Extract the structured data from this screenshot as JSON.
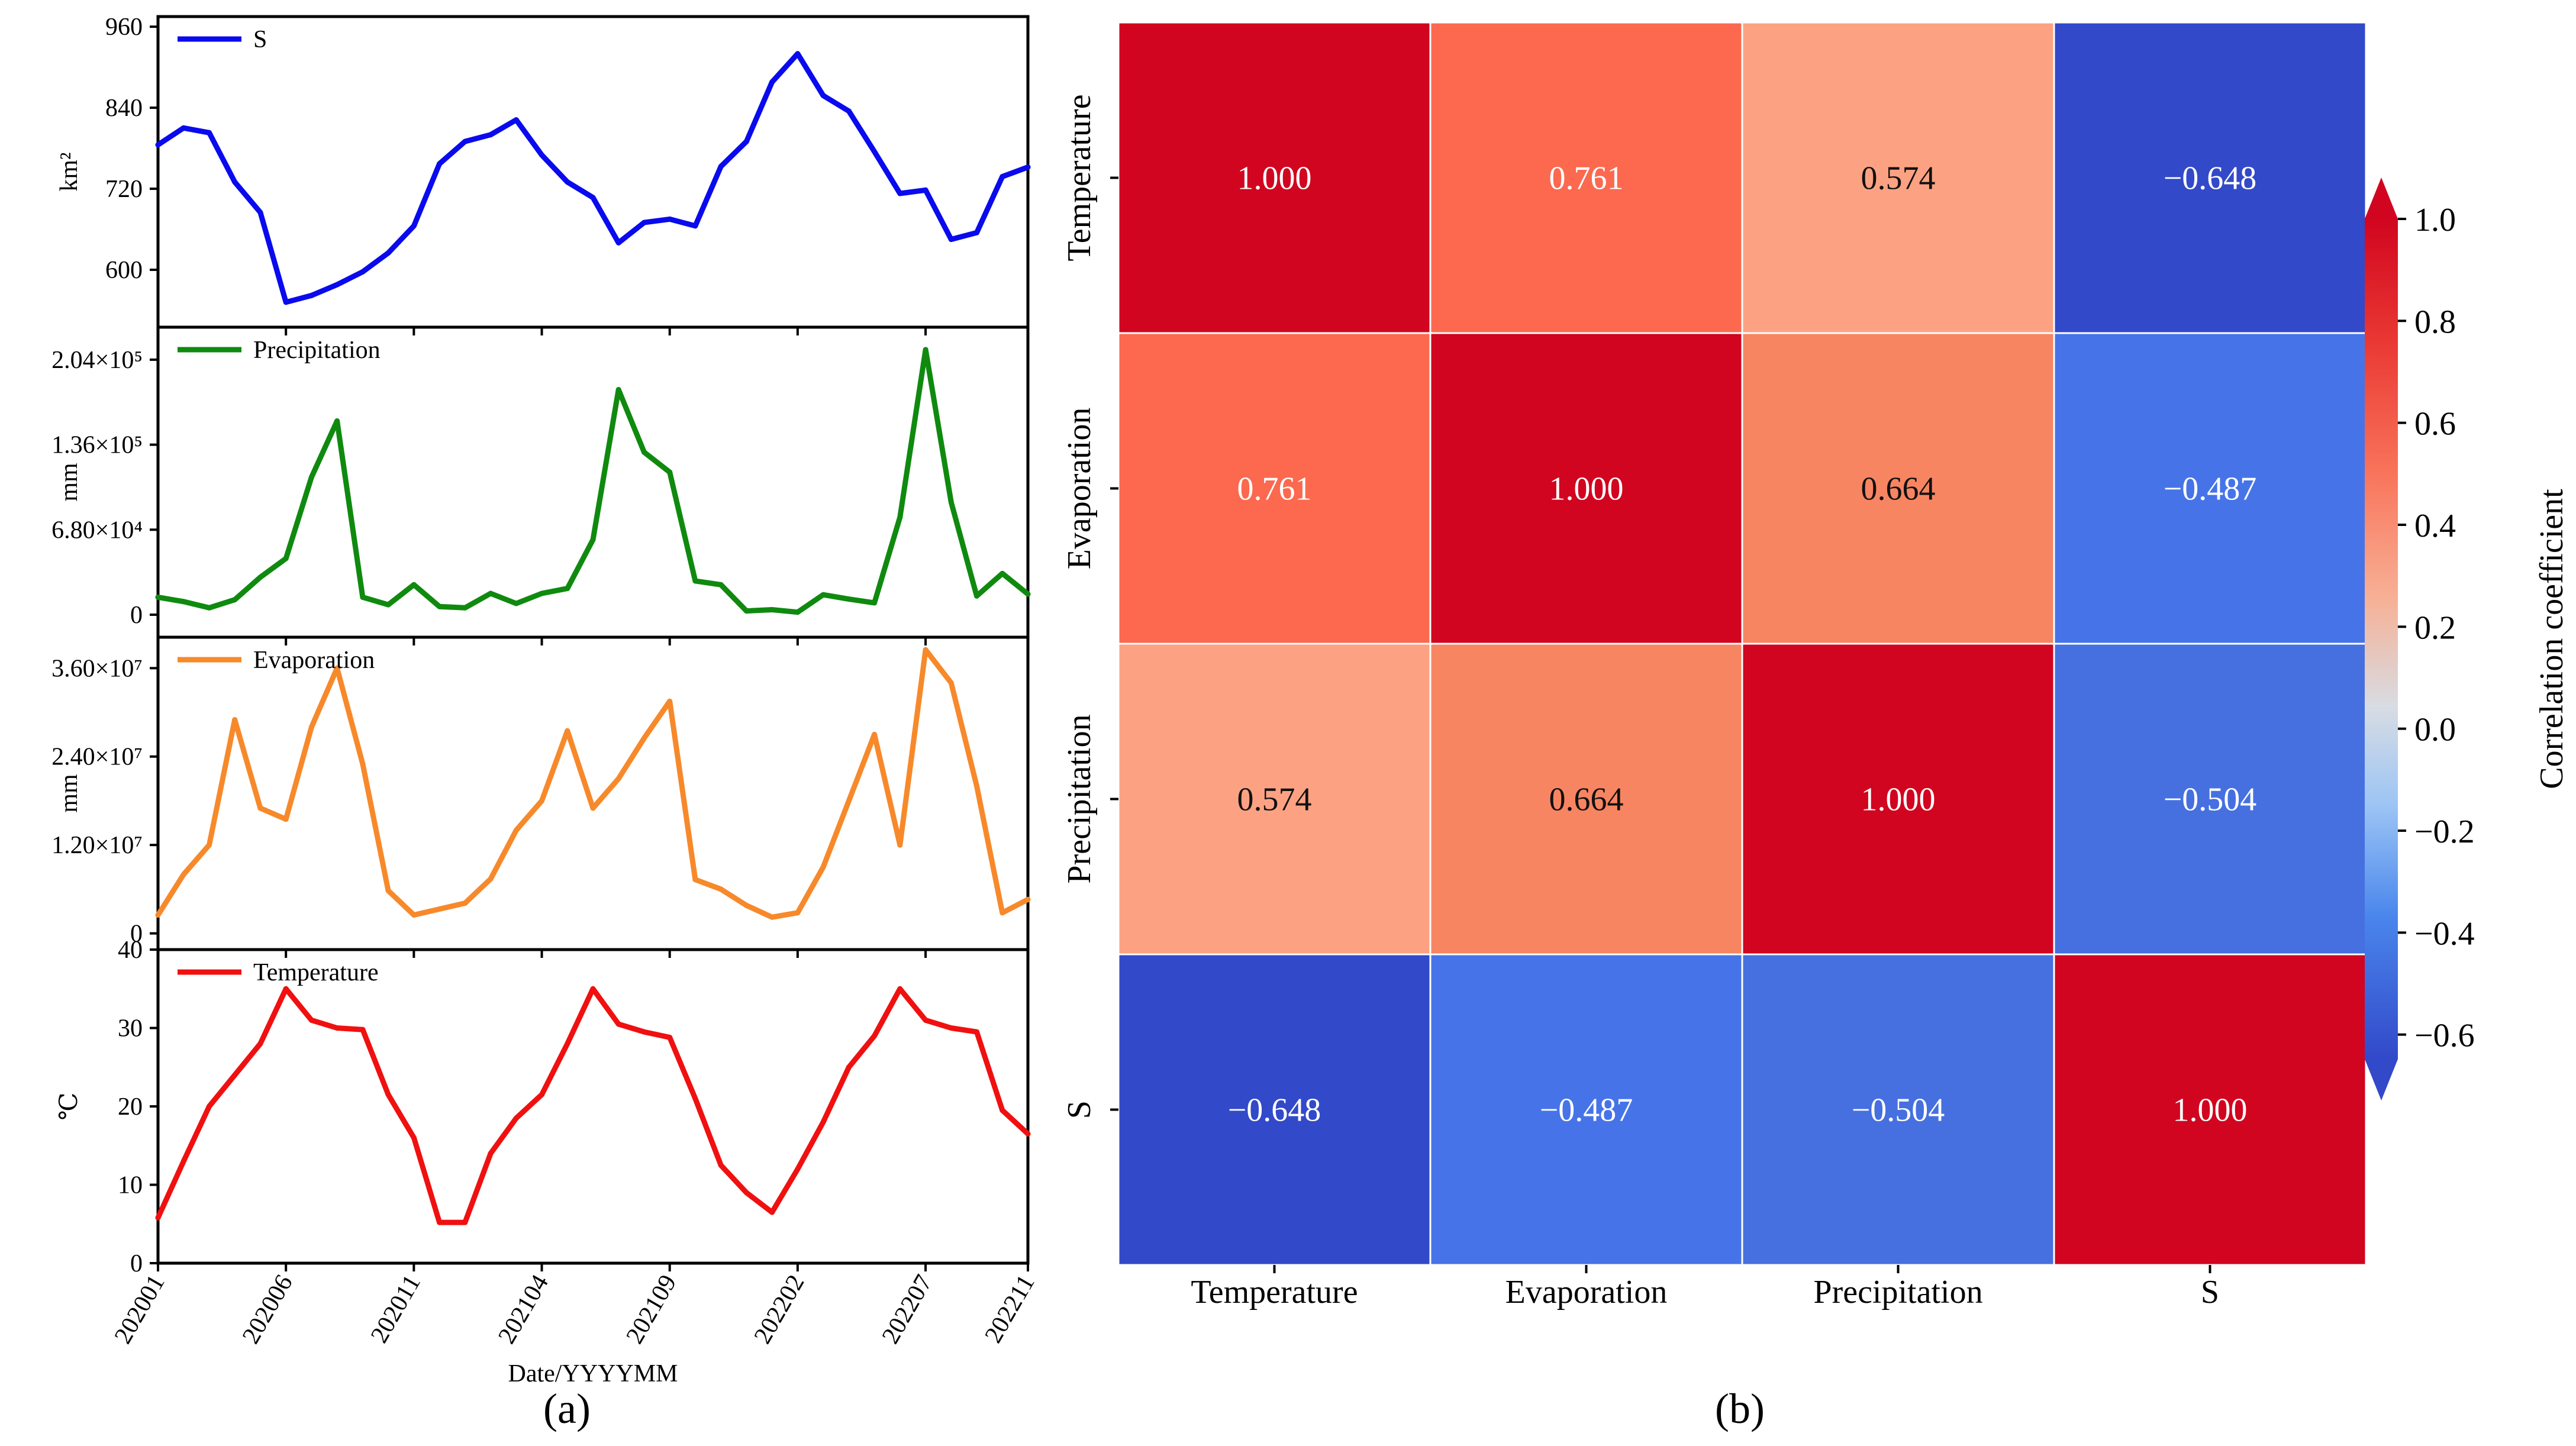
{
  "panel_a": {
    "label": "(a)",
    "xlabel": "Date/YYYYMM",
    "x_tick_labels": [
      "202001",
      "202006",
      "202011",
      "202104",
      "202109",
      "202202",
      "202207",
      "202211"
    ],
    "x_tick_months": [
      0,
      5,
      10,
      15,
      20,
      25,
      30,
      34
    ]
  },
  "panel_b": {
    "label": "(b)",
    "colorbar_label": "Correlation coefficient",
    "colorbar_ticks": [
      "1.0",
      "0.8",
      "0.6",
      "0.4",
      "0.2",
      "0.0",
      "−0.2",
      "−0.4",
      "−0.6"
    ]
  },
  "colors": {
    "S": "#0a0aee",
    "Precipitation": "#0f8a0f",
    "Evaporation": "#f7892b",
    "Temperature": "#f01010",
    "cell_1000": "#d1051f",
    "cell_0761": "#fc694f",
    "cell_0664": "#f88562",
    "cell_0574": "#fca283",
    "cell_m0648": "#3249c9",
    "cell_m0504": "#4670e0",
    "cell_m0487": "#4674e8"
  },
  "chart_data": [
    {
      "type": "line",
      "title": "",
      "legend": "S",
      "ylabel": "km²",
      "ylim": [
        515,
        975
      ],
      "yticks": [
        600,
        720,
        840,
        960
      ],
      "ytick_labels": [
        "600",
        "720",
        "840",
        "960"
      ],
      "x": [
        0,
        1,
        2,
        3,
        4,
        5,
        6,
        7,
        8,
        9,
        10,
        11,
        12,
        13,
        14,
        15,
        16,
        17,
        18,
        19,
        20,
        21,
        22,
        23,
        24,
        25,
        26,
        27,
        28,
        29,
        30,
        31,
        32,
        33,
        34
      ],
      "values": [
        785,
        810,
        803,
        730,
        685,
        552,
        562,
        578,
        597,
        625,
        665,
        757,
        790,
        800,
        822,
        770,
        730,
        707,
        640,
        670,
        675,
        665,
        753,
        790,
        878,
        920,
        858,
        835,
        775,
        713,
        718,
        645,
        655,
        738,
        752
      ]
    },
    {
      "type": "line",
      "legend": "Precipitation",
      "ylabel": "mm",
      "ylim": [
        -18000,
        230000
      ],
      "yticks": [
        0,
        68000,
        136000,
        204000
      ],
      "ytick_labels": [
        "0",
        "6.80×10⁴",
        "1.36×10⁵",
        "2.04×10⁵"
      ],
      "x": [
        0,
        1,
        2,
        3,
        4,
        5,
        6,
        7,
        8,
        9,
        10,
        11,
        12,
        13,
        14,
        15,
        16,
        17,
        18,
        19,
        20,
        21,
        22,
        23,
        24,
        25,
        26,
        27,
        28,
        29,
        30,
        31,
        32,
        33,
        34
      ],
      "values": [
        14000,
        10500,
        5500,
        12000,
        30000,
        45000,
        110000,
        155000,
        14000,
        8000,
        24000,
        6500,
        5500,
        17000,
        9000,
        17000,
        21000,
        60000,
        180000,
        130000,
        114000,
        27000,
        24000,
        3000,
        4000,
        2000,
        16000,
        12500,
        9500,
        78000,
        212000,
        90000,
        15000,
        33000,
        16500
      ]
    },
    {
      "type": "line",
      "legend": "Evaporation",
      "ylabel": "mm",
      "ylim": [
        -2200000,
        40200000
      ],
      "yticks": [
        0,
        12000000,
        24000000,
        36000000
      ],
      "ytick_labels": [
        "0",
        "1.20×10⁷",
        "2.40×10⁷",
        "3.60×10⁷"
      ],
      "x": [
        0,
        1,
        2,
        3,
        4,
        5,
        6,
        7,
        8,
        9,
        10,
        11,
        12,
        13,
        14,
        15,
        16,
        17,
        18,
        19,
        20,
        21,
        22,
        23,
        24,
        25,
        26,
        27,
        28,
        29,
        30,
        31,
        32,
        33,
        34
      ],
      "values": [
        2500000,
        8000000,
        12000000,
        29000000,
        17000000,
        15500000,
        28000000,
        36000000,
        23000000,
        5800000,
        2500000,
        3300000,
        4100000,
        7400000,
        14000000,
        18000000,
        27500000,
        17000000,
        21000000,
        26500000,
        31500000,
        7300000,
        6000000,
        3800000,
        2200000,
        2800000,
        9000000,
        18000000,
        27000000,
        12000000,
        38500000,
        34000000,
        20000000,
        2800000,
        4600000
      ]
    },
    {
      "type": "line",
      "legend": "Temperature",
      "ylabel": "℃",
      "xlabel": "Date/YYYYMM",
      "ylim": [
        0,
        40
      ],
      "yticks": [
        0,
        10,
        20,
        30,
        40
      ],
      "ytick_labels": [
        "0",
        "10",
        "20",
        "30",
        "40"
      ],
      "x": [
        0,
        1,
        2,
        3,
        4,
        5,
        6,
        7,
        8,
        9,
        10,
        11,
        12,
        13,
        14,
        15,
        16,
        17,
        18,
        19,
        20,
        21,
        22,
        23,
        24,
        25,
        26,
        27,
        28,
        29,
        30,
        31,
        32,
        33,
        34
      ],
      "values": [
        5.8,
        13,
        20,
        24,
        28,
        35,
        31,
        30,
        29.8,
        21.5,
        16,
        5.2,
        5.2,
        14,
        18.5,
        21.5,
        28,
        35,
        30.5,
        29.5,
        28.8,
        21,
        12.5,
        9,
        6.5,
        12,
        18,
        25,
        29,
        35,
        31,
        30,
        29.5,
        19.5,
        16.5
      ]
    },
    {
      "type": "heatmap",
      "title": "",
      "row_labels": [
        "Temperature",
        "Evaporation",
        "Precipitation",
        "S"
      ],
      "col_labels": [
        "Temperature",
        "Evaporation",
        "Precipitation",
        "S"
      ],
      "values": [
        [
          1.0,
          0.761,
          0.574,
          -0.648
        ],
        [
          0.761,
          1.0,
          0.664,
          -0.487
        ],
        [
          0.574,
          0.664,
          1.0,
          -0.504
        ],
        [
          -0.648,
          -0.487,
          -0.504,
          1.0
        ]
      ],
      "value_labels": [
        [
          "1.000",
          "0.761",
          "0.574",
          "−0.648"
        ],
        [
          "0.761",
          "1.000",
          "0.664",
          "−0.487"
        ],
        [
          "0.574",
          "0.664",
          "1.000",
          "−0.504"
        ],
        [
          "−0.648",
          "−0.487",
          "−0.504",
          "1.000"
        ]
      ],
      "colorbar": {
        "label": "Correlation coefficient",
        "range": [
          -0.648,
          1.0
        ],
        "ticks": [
          1.0,
          0.8,
          0.6,
          0.4,
          0.2,
          0.0,
          -0.2,
          -0.4,
          -0.6
        ]
      }
    }
  ]
}
